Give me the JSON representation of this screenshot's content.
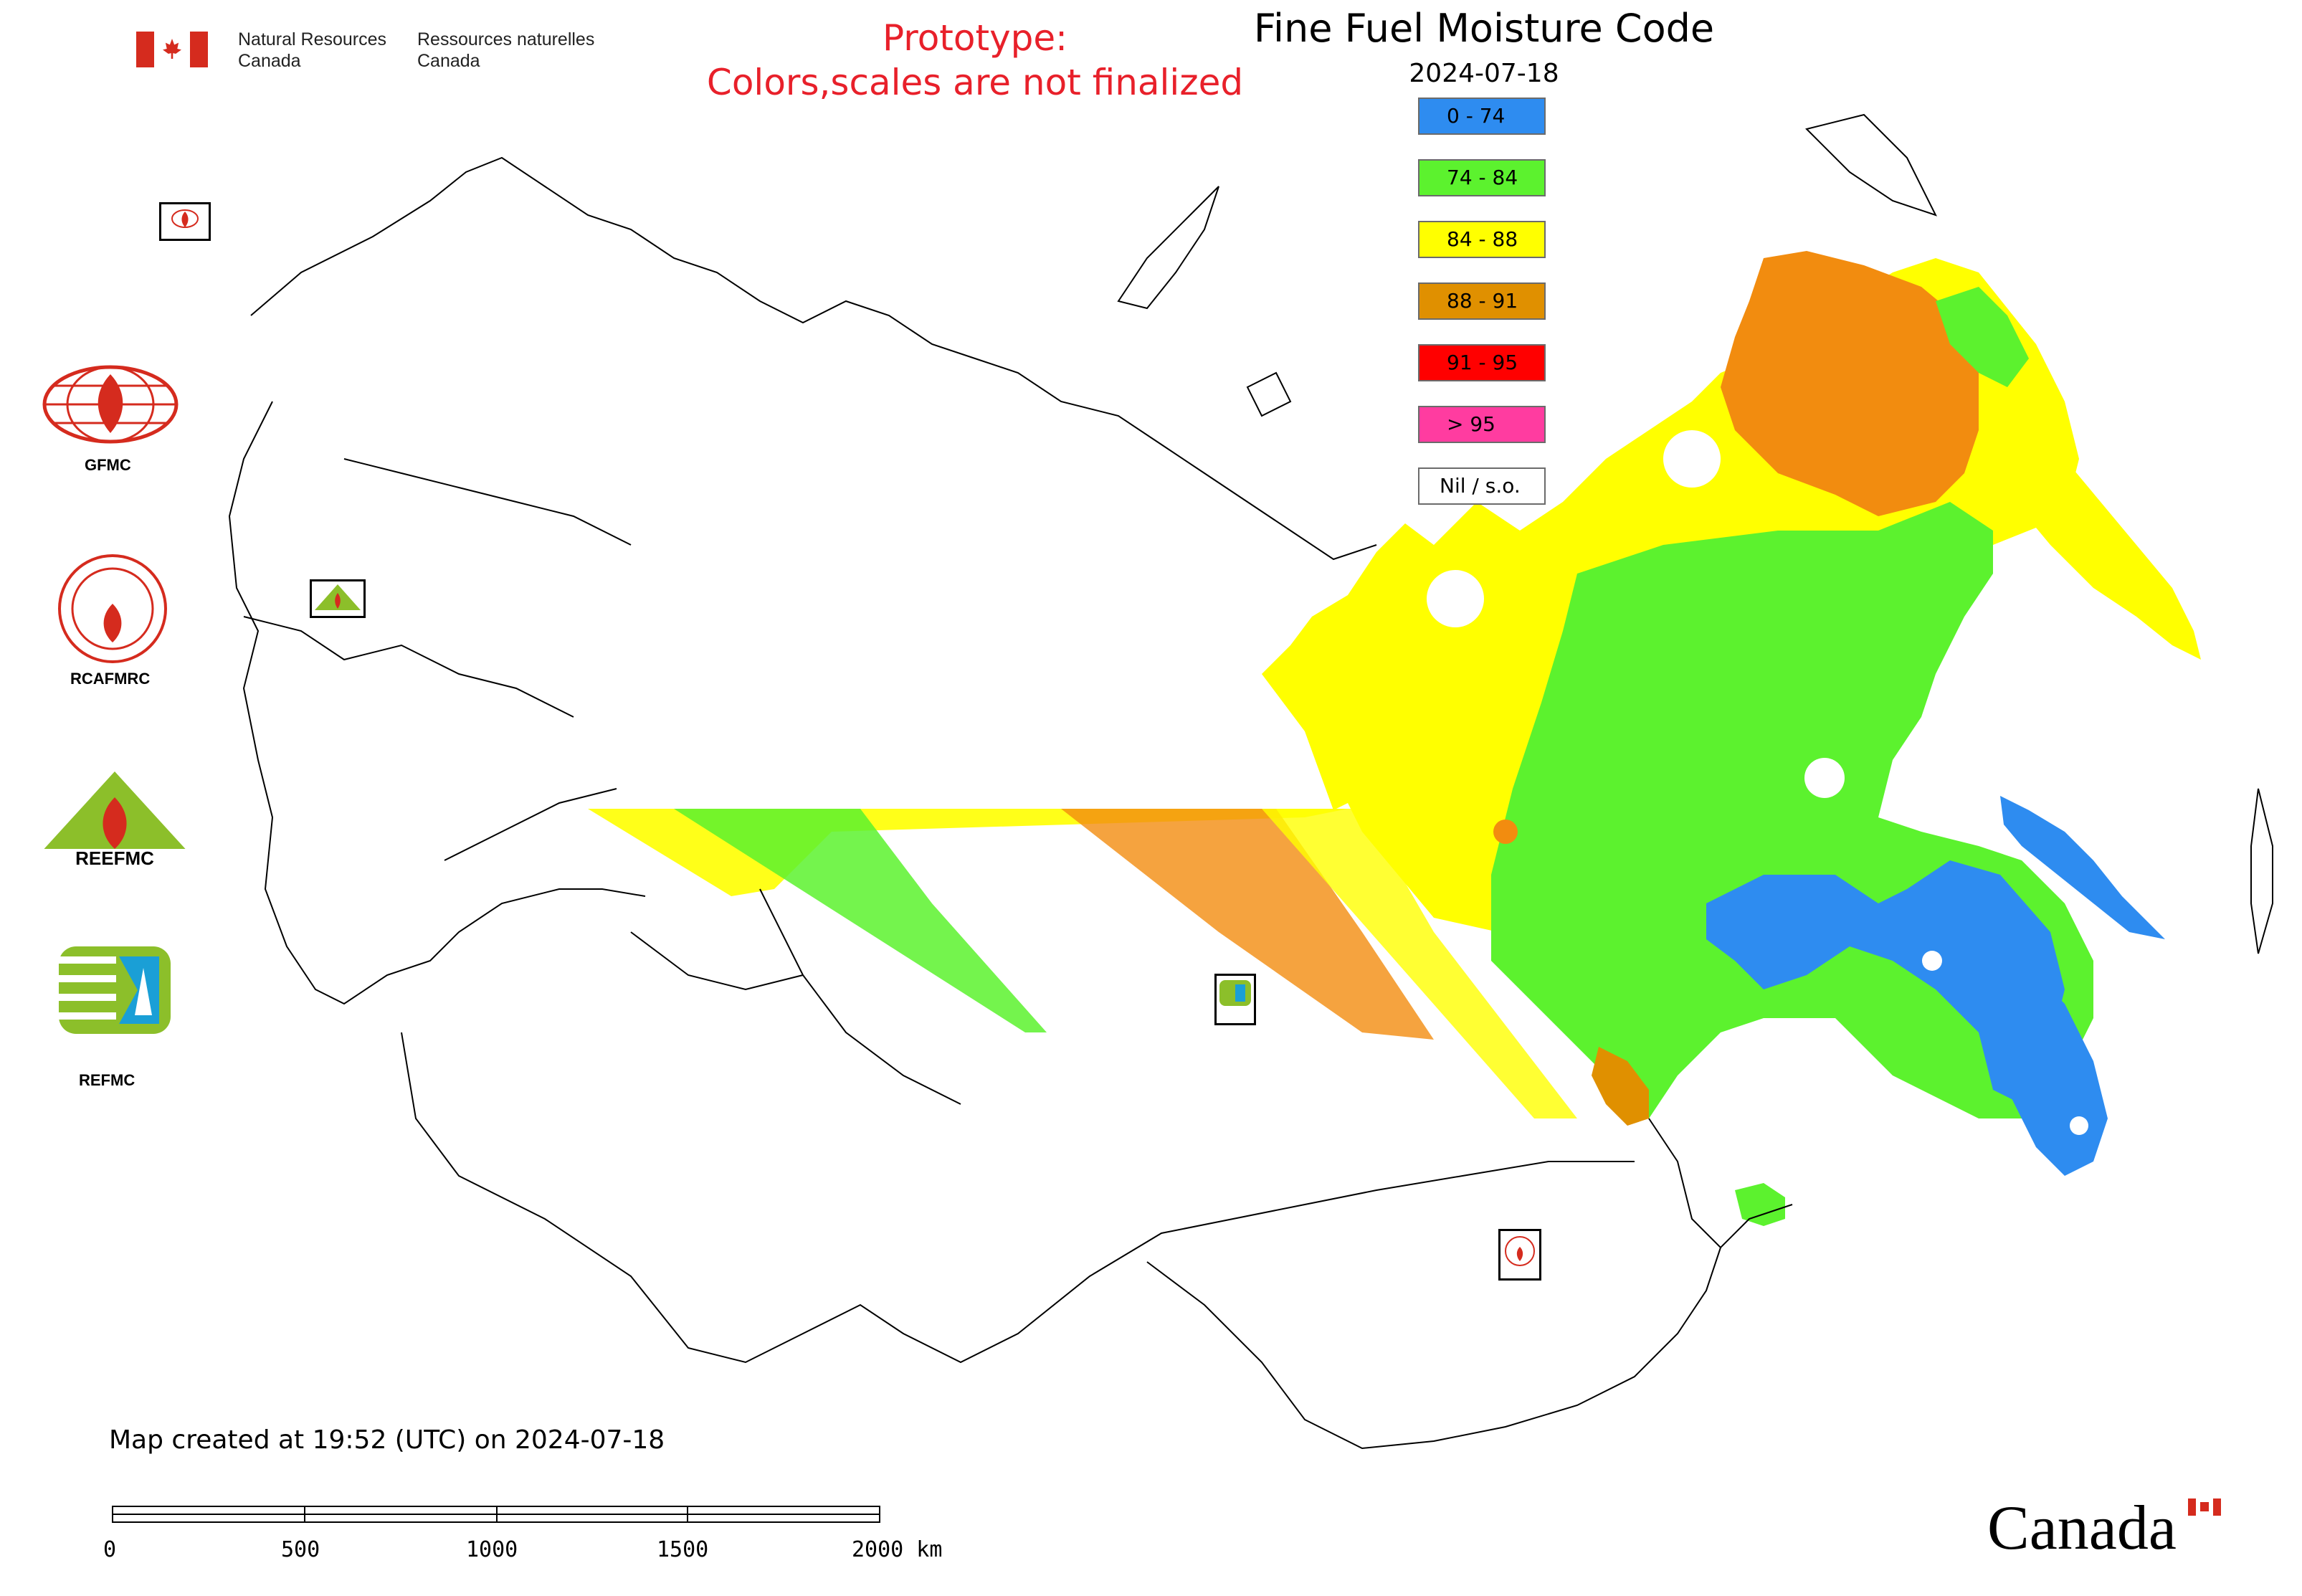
{
  "header": {
    "gov_en_line1": "Natural Resources",
    "gov_en_line2": "Canada",
    "gov_fr_line1": "Ressources naturelles",
    "gov_fr_line2": "Canada",
    "prototype_line1": "Prototype:",
    "prototype_line2": "Colors,scales are not finalized"
  },
  "map": {
    "title": "Fine Fuel Moisture Code",
    "date": "2024-07-18"
  },
  "legend": [
    {
      "label": "0 - 74",
      "color": "#2e8cf0"
    },
    {
      "label": "74 - 84",
      "color": "#5cf22e"
    },
    {
      "label": "84 - 88",
      "color": "#ffff00"
    },
    {
      "label": "88 - 91",
      "color": "#e09000"
    },
    {
      "label": "91 - 95",
      "color": "#ff0000"
    },
    {
      "label": "> 95",
      "color": "#ff3ca0"
    },
    {
      "label": "Nil / s.o.",
      "color": "#ffffff"
    }
  ],
  "logos": [
    {
      "name": "GFMC",
      "label": "GFMC"
    },
    {
      "name": "RCAFMRC",
      "label": "RCAFMRC"
    },
    {
      "name": "REEFMC",
      "label": "REEFMC"
    },
    {
      "name": "REFMC",
      "label": "REFMC"
    }
  ],
  "footer": {
    "created": "Map created at 19:52 (UTC) on 2024-07-18",
    "scale_ticks": [
      "0",
      "500",
      "1000",
      "1500",
      "2000 km"
    ],
    "wordmark": "Canada"
  },
  "colors": {
    "prototype_text": "#e8202a",
    "flag_red": "#d52b1e"
  }
}
